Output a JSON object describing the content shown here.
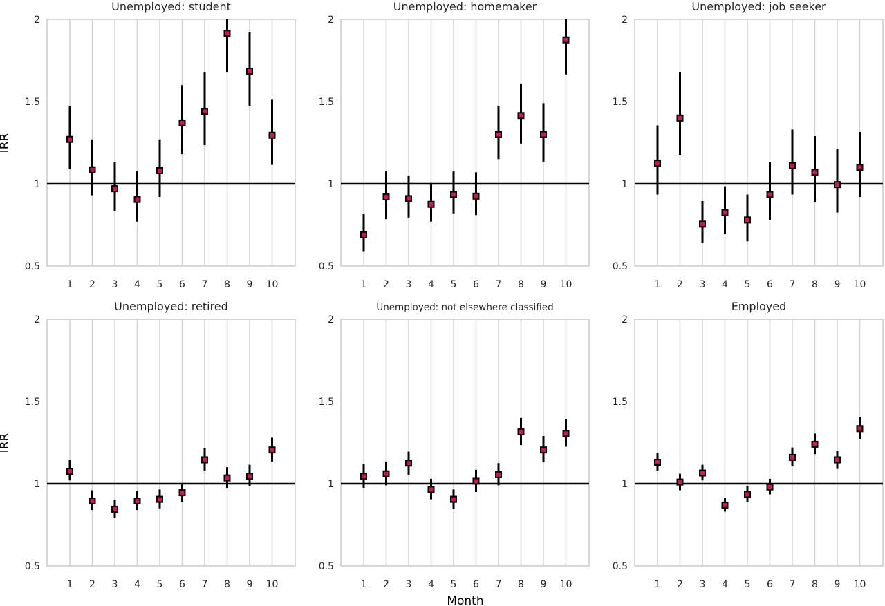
{
  "figure": {
    "ylabel": "IRR",
    "xlabel": "Month",
    "colors": {
      "grid": "#d4d4d4",
      "frame": "#cfcfcf",
      "errorbar": "#000000",
      "marker_fill": "#c8185a",
      "marker_edge": "#000000",
      "reference_line": "#000000",
      "text": "#262626"
    }
  },
  "chart_data": [
    {
      "type": "scatter",
      "title": "Unemployed: student",
      "x": [
        1,
        2,
        3,
        4,
        5,
        6,
        7,
        8,
        9,
        10
      ],
      "xticks": [
        "1",
        "2",
        "3",
        "4",
        "5",
        "6",
        "7",
        "8",
        "9",
        "10"
      ],
      "yticks": [
        "0.5",
        "1",
        "1.5",
        "2"
      ],
      "ylim": [
        0.5,
        2
      ],
      "reference_line": 1,
      "grid": "vertical",
      "y": [
        1.27,
        1.085,
        0.97,
        0.905,
        1.08,
        1.37,
        1.44,
        1.915,
        1.685,
        1.295
      ],
      "lower": [
        1.09,
        0.93,
        0.835,
        0.77,
        0.92,
        1.18,
        1.235,
        1.68,
        1.475,
        1.115
      ],
      "upper": [
        1.475,
        1.27,
        1.13,
        1.075,
        1.27,
        1.6,
        1.68,
        2.0,
        1.92,
        1.515
      ]
    },
    {
      "type": "scatter",
      "title": "Unemployed: homemaker",
      "x": [
        1,
        2,
        3,
        4,
        5,
        6,
        7,
        8,
        9,
        10
      ],
      "xticks": [
        "1",
        "2",
        "3",
        "4",
        "5",
        "6",
        "7",
        "8",
        "9",
        "10"
      ],
      "yticks": [
        "0.5",
        "1",
        "1.5",
        "2"
      ],
      "ylim": [
        0.5,
        2
      ],
      "reference_line": 1,
      "grid": "vertical",
      "y": [
        0.69,
        0.92,
        0.91,
        0.875,
        0.935,
        0.925,
        1.3,
        1.415,
        1.3,
        1.875
      ],
      "lower": [
        0.59,
        0.785,
        0.795,
        0.77,
        0.82,
        0.81,
        1.15,
        1.245,
        1.135,
        1.665
      ],
      "upper": [
        0.815,
        1.075,
        1.05,
        1.005,
        1.075,
        1.07,
        1.475,
        1.61,
        1.49,
        2.0
      ]
    },
    {
      "type": "scatter",
      "title": "Unemployed: job seeker",
      "x": [
        1,
        2,
        3,
        4,
        5,
        6,
        7,
        8,
        9,
        10
      ],
      "xticks": [
        "1",
        "2",
        "3",
        "4",
        "5",
        "6",
        "7",
        "8",
        "9",
        "10"
      ],
      "yticks": [
        "0.5",
        "1",
        "1.5",
        "2"
      ],
      "ylim": [
        0.5,
        2
      ],
      "reference_line": 1,
      "grid": "vertical",
      "y": [
        1.125,
        1.4,
        0.755,
        0.825,
        0.78,
        0.935,
        1.11,
        1.07,
        0.995,
        1.1
      ],
      "lower": [
        0.935,
        1.175,
        0.64,
        0.695,
        0.65,
        0.78,
        0.935,
        0.89,
        0.825,
        0.92
      ],
      "upper": [
        1.355,
        1.68,
        0.895,
        0.985,
        0.935,
        1.13,
        1.33,
        1.29,
        1.21,
        1.315
      ]
    },
    {
      "type": "scatter",
      "title": "Unemployed: retired",
      "x": [
        1,
        2,
        3,
        4,
        5,
        6,
        7,
        8,
        9,
        10
      ],
      "xticks": [
        "1",
        "2",
        "3",
        "4",
        "5",
        "6",
        "7",
        "8",
        "9",
        "10"
      ],
      "yticks": [
        "0.5",
        "1",
        "1.5",
        "2"
      ],
      "ylim": [
        0.5,
        2
      ],
      "reference_line": 1,
      "grid": "vertical",
      "y": [
        1.075,
        0.895,
        0.845,
        0.895,
        0.905,
        0.945,
        1.145,
        1.035,
        1.045,
        1.205
      ],
      "lower": [
        1.02,
        0.84,
        0.79,
        0.84,
        0.85,
        0.89,
        1.08,
        0.975,
        0.985,
        1.135
      ],
      "upper": [
        1.145,
        0.96,
        0.9,
        0.955,
        0.965,
        1.0,
        1.215,
        1.1,
        1.115,
        1.28
      ]
    },
    {
      "type": "scatter",
      "title": "Unemployed: not elsewhere classified",
      "x": [
        1,
        2,
        3,
        4,
        5,
        6,
        7,
        8,
        9,
        10
      ],
      "xticks": [
        "1",
        "2",
        "3",
        "4",
        "5",
        "6",
        "7",
        "8",
        "9",
        "10"
      ],
      "yticks": [
        "0.5",
        "1",
        "1.5",
        "2"
      ],
      "ylim": [
        0.5,
        2
      ],
      "reference_line": 1,
      "grid": "vertical",
      "y": [
        1.045,
        1.06,
        1.125,
        0.965,
        0.905,
        1.015,
        1.055,
        1.315,
        1.205,
        1.305
      ],
      "lower": [
        0.975,
        0.99,
        1.055,
        0.905,
        0.845,
        0.95,
        0.99,
        1.235,
        1.13,
        1.225
      ],
      "upper": [
        1.12,
        1.135,
        1.195,
        1.03,
        0.965,
        1.085,
        1.125,
        1.4,
        1.29,
        1.395
      ]
    },
    {
      "type": "scatter",
      "title": "Employed",
      "x": [
        1,
        2,
        3,
        4,
        5,
        6,
        7,
        8,
        9,
        10
      ],
      "xticks": [
        "1",
        "2",
        "3",
        "4",
        "5",
        "6",
        "7",
        "8",
        "9",
        "10"
      ],
      "yticks": [
        "0.5",
        "1",
        "1.5",
        "2"
      ],
      "ylim": [
        0.5,
        2
      ],
      "reference_line": 1,
      "grid": "vertical",
      "y": [
        1.13,
        1.01,
        1.065,
        0.87,
        0.935,
        0.98,
        1.16,
        1.24,
        1.145,
        1.335
      ],
      "lower": [
        1.08,
        0.96,
        1.02,
        0.83,
        0.89,
        0.935,
        1.105,
        1.18,
        1.09,
        1.27
      ],
      "upper": [
        1.185,
        1.06,
        1.115,
        0.915,
        0.985,
        1.03,
        1.22,
        1.305,
        1.2,
        1.405
      ]
    }
  ]
}
